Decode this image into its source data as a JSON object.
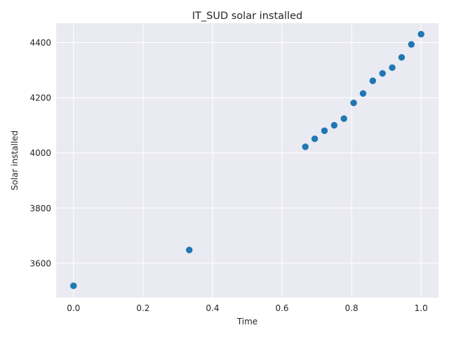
{
  "chart_data": {
    "type": "scatter",
    "title": "IT_SUD solar installed",
    "xlabel": "Time",
    "ylabel": "Solar installed",
    "xlim": [
      -0.05,
      1.05
    ],
    "ylim": [
      3475,
      4470
    ],
    "xticks": [
      0.0,
      0.2,
      0.4,
      0.6,
      0.8,
      1.0
    ],
    "xtick_labels": [
      "0.0",
      "0.2",
      "0.4",
      "0.6",
      "0.8",
      "1.0"
    ],
    "yticks": [
      3600,
      3800,
      4000,
      4200,
      4400
    ],
    "ytick_labels": [
      "3600",
      "3800",
      "4000",
      "4200",
      "4400"
    ],
    "grid": true,
    "style": {
      "background": "#eaeaf2",
      "grid_color": "#ffffff",
      "marker_color": "#1f77b4"
    },
    "points": [
      {
        "x": 0.0,
        "y": 3518
      },
      {
        "x": 0.333,
        "y": 3648
      },
      {
        "x": 0.667,
        "y": 4022
      },
      {
        "x": 0.694,
        "y": 4051
      },
      {
        "x": 0.722,
        "y": 4080
      },
      {
        "x": 0.75,
        "y": 4100
      },
      {
        "x": 0.778,
        "y": 4124
      },
      {
        "x": 0.806,
        "y": 4181
      },
      {
        "x": 0.833,
        "y": 4215
      },
      {
        "x": 0.861,
        "y": 4261
      },
      {
        "x": 0.889,
        "y": 4288
      },
      {
        "x": 0.917,
        "y": 4309
      },
      {
        "x": 0.944,
        "y": 4346
      },
      {
        "x": 0.972,
        "y": 4393
      },
      {
        "x": 1.0,
        "y": 4430
      }
    ]
  }
}
